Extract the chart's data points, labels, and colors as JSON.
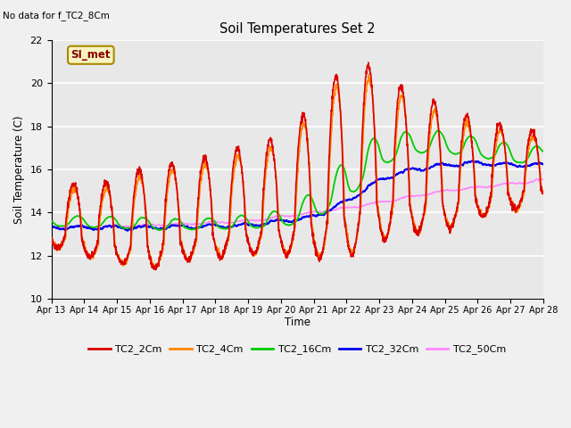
{
  "title": "Soil Temperatures Set 2",
  "subtitle": "No data for f_TC2_8Cm",
  "xlabel": "Time",
  "ylabel": "Soil Temperature (C)",
  "ylim": [
    10,
    22
  ],
  "yticks": [
    10,
    12,
    14,
    16,
    18,
    20,
    22
  ],
  "date_labels": [
    "Apr 13",
    "Apr 14",
    "Apr 15",
    "Apr 16",
    "Apr 17",
    "Apr 18",
    "Apr 19",
    "Apr 20",
    "Apr 21",
    "Apr 22",
    "Apr 23",
    "Apr 24",
    "Apr 25",
    "Apr 26",
    "Apr 27",
    "Apr 28"
  ],
  "colors": {
    "TC2_2Cm": "#dd0000",
    "TC2_4Cm": "#ff8800",
    "TC2_16Cm": "#00cc00",
    "TC2_32Cm": "#0000ee",
    "TC2_50Cm": "#ff88ff"
  },
  "legend_label": "SI_met",
  "bg_color": "#e8e8e8",
  "grid_color": "#ffffff"
}
